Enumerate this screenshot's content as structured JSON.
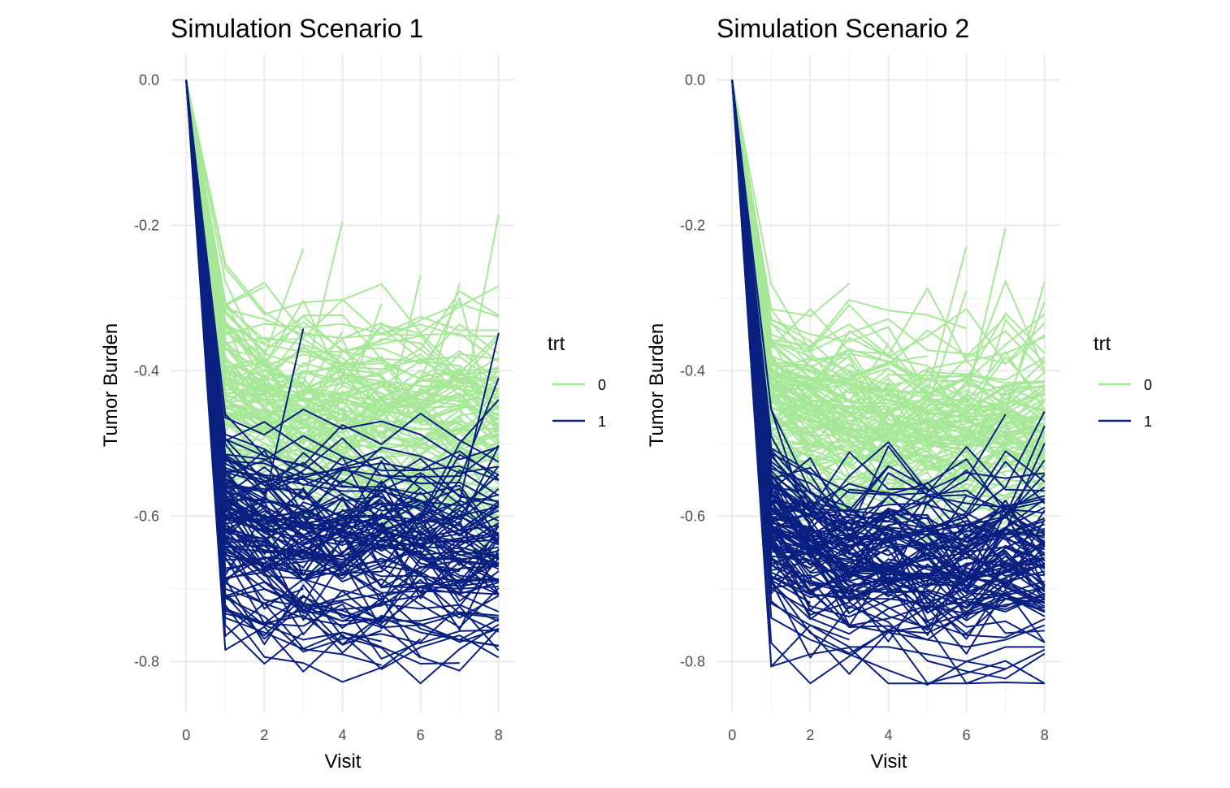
{
  "chart_data": [
    {
      "type": "line",
      "title": "Simulation Scenario 1",
      "xlabel": "Visit",
      "ylabel": "Tumor Burden",
      "xlim": [
        0,
        8
      ],
      "ylim": [
        -0.87,
        0.035
      ],
      "x_ticks": [
        0,
        2,
        4,
        6,
        8
      ],
      "x_tick_labels": [
        "0",
        "2",
        "4",
        "6",
        "8"
      ],
      "y_ticks": [
        0.0,
        -0.2,
        -0.4,
        -0.6,
        -0.8
      ],
      "y_tick_labels": [
        "0.0",
        "-0.2",
        "-0.4",
        "-0.6",
        "-0.8"
      ],
      "grid": true,
      "legend": {
        "title": "trt",
        "position": "right",
        "entries": [
          "0",
          "1"
        ]
      },
      "x": [
        0,
        1,
        2,
        3,
        4,
        5,
        6,
        7,
        8
      ],
      "series": [
        {
          "name": "0",
          "color": "#a6e898",
          "mean": [
            0,
            -0.44,
            -0.46,
            -0.47,
            -0.47,
            -0.48,
            -0.48,
            -0.48,
            -0.49
          ],
          "spread": 0.06,
          "n": 110,
          "highlights": [
            [
              0,
              -0.255
            ],
            [
              0,
              -0.31,
              -0.285
            ],
            [
              0,
              -0.34,
              -0.38,
              -0.232
            ],
            [
              0,
              -0.37,
              -0.4,
              -0.42,
              -0.195
            ],
            [
              0,
              -0.4,
              -0.42,
              -0.45,
              -0.47,
              -0.42,
              -0.47,
              -0.47,
              -0.185
            ],
            [
              0,
              -0.42,
              -0.44,
              -0.46,
              -0.48,
              -0.44,
              -0.47,
              -0.45,
              -0.4
            ],
            [
              0,
              -0.44,
              -0.47,
              -0.45,
              -0.46,
              -0.5,
              -0.269
            ],
            [
              0,
              -0.45,
              -0.47,
              -0.48,
              -0.44,
              -0.45,
              -0.47,
              -0.28
            ],
            [
              0,
              -0.47,
              -0.5,
              -0.52,
              -0.5,
              -0.46,
              -0.41,
              -0.3,
              -0.5
            ],
            [
              0,
              -0.41,
              -0.43,
              -0.44,
              -0.46,
              -0.308
            ],
            [
              0,
              -0.55,
              -0.57,
              -0.6,
              -0.59,
              -0.6,
              -0.61,
              -0.6,
              -0.6
            ],
            [
              0,
              -0.56,
              -0.61,
              -0.6,
              -0.58,
              -0.62,
              -0.58,
              -0.59,
              -0.57
            ]
          ]
        },
        {
          "name": "1",
          "color": "#0a2080",
          "mean": [
            0,
            -0.6,
            -0.62,
            -0.63,
            -0.63,
            -0.63,
            -0.64,
            -0.64,
            -0.64
          ],
          "spread": 0.06,
          "n": 110,
          "highlights": [
            [
              0,
              -0.765,
              -0.72,
              -0.7
            ],
            [
              0,
              -0.75,
              -0.803,
              -0.76
            ],
            [
              0,
              -0.74,
              -0.76,
              -0.783,
              -0.79,
              -0.805
            ],
            [
              0,
              -0.73,
              -0.75,
              -0.77,
              -0.76,
              -0.78,
              -0.803,
              -0.802
            ],
            [
              0,
              -0.7,
              -0.72,
              -0.74,
              -0.75,
              -0.74,
              -0.76,
              -0.77,
              -0.778
            ],
            [
              0,
              -0.55,
              -0.58,
              -0.342
            ],
            [
              0,
              -0.6,
              -0.62,
              -0.63,
              -0.64,
              -0.62,
              -0.6,
              -0.58,
              -0.348
            ],
            [
              0,
              -0.58,
              -0.6,
              -0.61,
              -0.62,
              -0.63,
              -0.62,
              -0.55,
              -0.41
            ],
            [
              0,
              -0.62,
              -0.64,
              -0.65,
              -0.66,
              -0.64,
              -0.6,
              -0.5,
              -0.44
            ],
            [
              0,
              -0.66,
              -0.7,
              -0.72,
              -0.73,
              -0.75,
              -0.795
            ]
          ]
        }
      ]
    },
    {
      "type": "line",
      "title": "Simulation Scenario 2",
      "xlabel": "Visit",
      "ylabel": "Tumor Burden",
      "xlim": [
        0,
        8
      ],
      "ylim": [
        -0.87,
        0.035
      ],
      "x_ticks": [
        0,
        2,
        4,
        6,
        8
      ],
      "x_tick_labels": [
        "0",
        "2",
        "4",
        "6",
        "8"
      ],
      "y_ticks": [
        0.0,
        -0.2,
        -0.4,
        -0.6,
        -0.8
      ],
      "y_tick_labels": [
        "0.0",
        "-0.2",
        "-0.4",
        "-0.6",
        "-0.8"
      ],
      "grid": true,
      "legend": {
        "title": "trt",
        "position": "right",
        "entries": [
          "0",
          "1"
        ]
      },
      "x": [
        0,
        1,
        2,
        3,
        4,
        5,
        6,
        7,
        8
      ],
      "series": [
        {
          "name": "0",
          "color": "#a6e898",
          "mean": [
            0,
            -0.44,
            -0.46,
            -0.47,
            -0.48,
            -0.48,
            -0.48,
            -0.48,
            -0.48
          ],
          "spread": 0.06,
          "n": 110,
          "highlights": [
            [
              0,
              -0.315,
              -0.325,
              -0.28
            ],
            [
              0,
              -0.33,
              -0.35,
              -0.36,
              -0.34,
              -0.43,
              -0.229
            ],
            [
              0,
              -0.36,
              -0.38,
              -0.4,
              -0.42,
              -0.41,
              -0.44,
              -0.204
            ],
            [
              0,
              -0.38,
              -0.4,
              -0.42,
              -0.44,
              -0.45,
              -0.42,
              -0.277,
              -0.4
            ],
            [
              0,
              -0.42,
              -0.44,
              -0.45,
              -0.46,
              -0.47,
              -0.48,
              -0.46,
              -0.278
            ],
            [
              0,
              -0.4,
              -0.42,
              -0.44,
              -0.46,
              -0.47,
              -0.46,
              -0.45,
              -0.305
            ],
            [
              0,
              -0.44,
              -0.46,
              -0.48,
              -0.49,
              -0.45,
              -0.29
            ],
            [
              0,
              -0.45,
              -0.47,
              -0.48,
              -0.5,
              -0.52,
              -0.5,
              -0.33,
              -0.39
            ],
            [
              0,
              -0.58,
              -0.6,
              -0.62,
              -0.62,
              -0.63,
              -0.64,
              -0.62,
              -0.55
            ],
            [
              0,
              -0.55,
              -0.57,
              -0.59,
              -0.6,
              -0.61,
              -0.58,
              -0.6,
              -0.58
            ]
          ]
        },
        {
          "name": "1",
          "color": "#0a2080",
          "mean": [
            0,
            -0.61,
            -0.64,
            -0.66,
            -0.66,
            -0.67,
            -0.67,
            -0.66,
            -0.66
          ],
          "spread": 0.06,
          "n": 110,
          "highlights": [
            [
              0,
              -0.807,
              -0.75,
              -0.77
            ],
            [
              0,
              -0.74,
              -0.77,
              -0.79,
              -0.812,
              -0.832,
              -0.8,
              -0.81
            ],
            [
              0,
              -0.72,
              -0.75,
              -0.78,
              -0.78,
              -0.79,
              -0.8,
              -0.78,
              -0.78
            ],
            [
              0,
              -0.7,
              -0.73,
              -0.75,
              -0.76,
              -0.77,
              -0.78,
              -0.77,
              -0.75
            ],
            [
              0,
              -0.58,
              -0.6,
              -0.62,
              -0.6,
              -0.58,
              -0.55,
              -0.46
            ],
            [
              0,
              -0.6,
              -0.62,
              -0.64,
              -0.63,
              -0.62,
              -0.6,
              -0.56,
              -0.456
            ],
            [
              0,
              -0.57,
              -0.6,
              -0.61,
              -0.62,
              -0.64,
              -0.63,
              -0.6,
              -0.476
            ],
            [
              0,
              -0.62,
              -0.65,
              -0.66,
              -0.67,
              -0.66,
              -0.65,
              -0.62,
              -0.5
            ]
          ]
        }
      ]
    }
  ]
}
